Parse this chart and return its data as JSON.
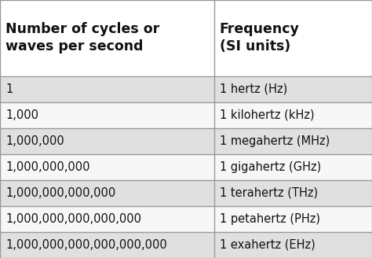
{
  "col1_header": "Number of cycles or\nwaves per second",
  "col2_header": "Frequency\n(SI units)",
  "rows": [
    [
      "1",
      "1 hertz (Hz)"
    ],
    [
      "1,000",
      "1 kilohertz (kHz)"
    ],
    [
      "1,000,000",
      "1 megahertz (MHz)"
    ],
    [
      "1,000,000,000",
      "1 gigahertz (GHz)"
    ],
    [
      "1,000,000,000,000",
      "1 terahertz (THz)"
    ],
    [
      "1,000,000,000,000,000",
      "1 petahertz (PHz)"
    ],
    [
      "1,000,000,000,000,000,000",
      "1 exahertz (EHz)"
    ]
  ],
  "header_bg": "#ffffff",
  "row_bg_odd": "#e0e0e0",
  "row_bg_even": "#f7f7f7",
  "border_color": "#999999",
  "text_color": "#111111",
  "header_fontsize": 12.5,
  "row_fontsize": 10.5,
  "col_split": 0.575,
  "fig_width": 4.74,
  "fig_height": 3.28,
  "dpi": 100
}
